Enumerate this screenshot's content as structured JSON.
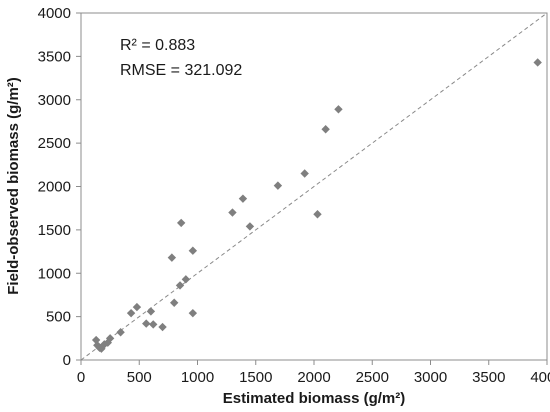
{
  "chart_data": {
    "type": "scatter",
    "title": "",
    "xlabel": "Estimated biomass (g/m²)",
    "ylabel": "Field-observed biomass (g/m²)",
    "xlim": [
      0,
      4000
    ],
    "ylim": [
      0,
      4000
    ],
    "x_ticks": [
      "0",
      "500",
      "1000",
      "1500",
      "2000",
      "2500",
      "3000",
      "3500",
      "4000"
    ],
    "y_ticks": [
      "0",
      "500",
      "1000",
      "1500",
      "2000",
      "2500",
      "3000",
      "3500",
      "4000"
    ],
    "grid": false,
    "reference_line": "1:1 dashed",
    "marker": "diamond",
    "marker_color": "#7f7f7f",
    "annotations": [
      "R² = 0.883",
      "RMSE = 321.092"
    ],
    "series": [
      {
        "x": [
          130,
          140,
          160,
          175,
          200,
          230,
          250,
          340,
          430,
          480,
          560,
          600,
          620,
          700,
          780,
          800,
          850,
          860,
          900,
          960,
          960,
          1300,
          1390,
          1450,
          1690,
          1920,
          2030,
          2100,
          2210,
          3920
        ],
        "y": [
          230,
          170,
          140,
          130,
          180,
          200,
          250,
          320,
          540,
          610,
          420,
          560,
          410,
          380,
          1180,
          660,
          860,
          1580,
          930,
          1260,
          540,
          1700,
          1860,
          1540,
          2010,
          2150,
          1680,
          2660,
          2890,
          3430
        ]
      }
    ]
  }
}
